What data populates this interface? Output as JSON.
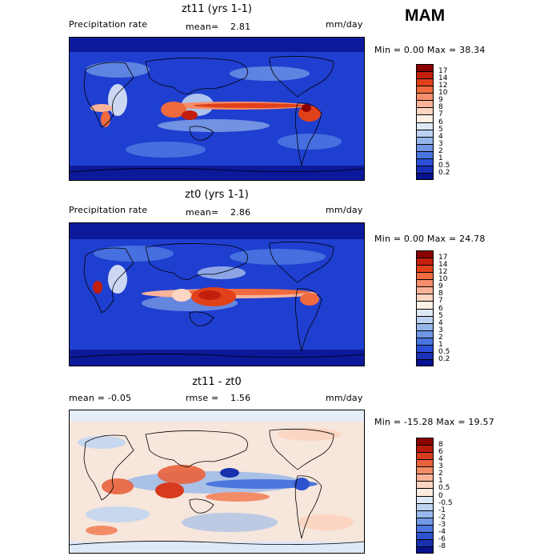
{
  "season": "MAM",
  "panels": [
    {
      "title": "zt11 (yrs 1-1)",
      "left_label": "Precipitation rate",
      "center_label": "mean=",
      "center_value": "2.81",
      "unit": "mm/day",
      "minmax": "Min =    0.00 Max =   38.34",
      "colorbar": {
        "labels": [
          "17",
          "14",
          "12",
          "10",
          "9",
          "8",
          "7",
          "6",
          "5",
          "4",
          "3",
          "2",
          "1",
          "0.5",
          "0.2"
        ],
        "colors": [
          "#8b0000",
          "#c41e0c",
          "#e0401a",
          "#ef6a3f",
          "#f58e6c",
          "#f9b39a",
          "#fdd5c3",
          "#fff1e4",
          "#dfe9f6",
          "#bcd2f0",
          "#95b6ea",
          "#6f95e4",
          "#4a74e0",
          "#2b4fd6",
          "#1931b8",
          "#07128f"
        ]
      }
    },
    {
      "title": "zt0 (yrs 1-1)",
      "left_label": "Precipitation rate",
      "center_label": "mean=",
      "center_value": "2.86",
      "unit": "mm/day",
      "minmax": "Min =    0.00 Max =   24.78",
      "colorbar": {
        "labels": [
          "17",
          "14",
          "12",
          "10",
          "9",
          "8",
          "7",
          "6",
          "5",
          "4",
          "3",
          "2",
          "1",
          "0.5",
          "0.2"
        ],
        "colors": [
          "#8b0000",
          "#c41e0c",
          "#e0401a",
          "#ef6a3f",
          "#f58e6c",
          "#f9b39a",
          "#fdd5c3",
          "#fff1e4",
          "#dfe9f6",
          "#bcd2f0",
          "#95b6ea",
          "#6f95e4",
          "#4a74e0",
          "#2b4fd6",
          "#1931b8",
          "#07128f"
        ]
      }
    },
    {
      "title": "zt11 - zt0",
      "left_label": "mean =   -0.05",
      "center_label": "rmse =",
      "center_value": "1.56",
      "unit": "mm/day",
      "minmax": "Min = -15.28 Max =  19.57",
      "colorbar": {
        "labels": [
          "8",
          "6",
          "4",
          "3",
          "2",
          "1",
          "0.5",
          "0",
          "-0.5",
          "-1",
          "-2",
          "-3",
          "-4",
          "-6",
          "-8"
        ],
        "colors": [
          "#8b0000",
          "#b81a0b",
          "#d73b1d",
          "#e8623c",
          "#f28c67",
          "#f8b396",
          "#fcd5c2",
          "#fdebe0",
          "#dde9f7",
          "#bcd3f1",
          "#97b8ea",
          "#7198e3",
          "#4d77dc",
          "#2d52cd",
          "#1631ad",
          "#07128f"
        ]
      }
    }
  ]
}
